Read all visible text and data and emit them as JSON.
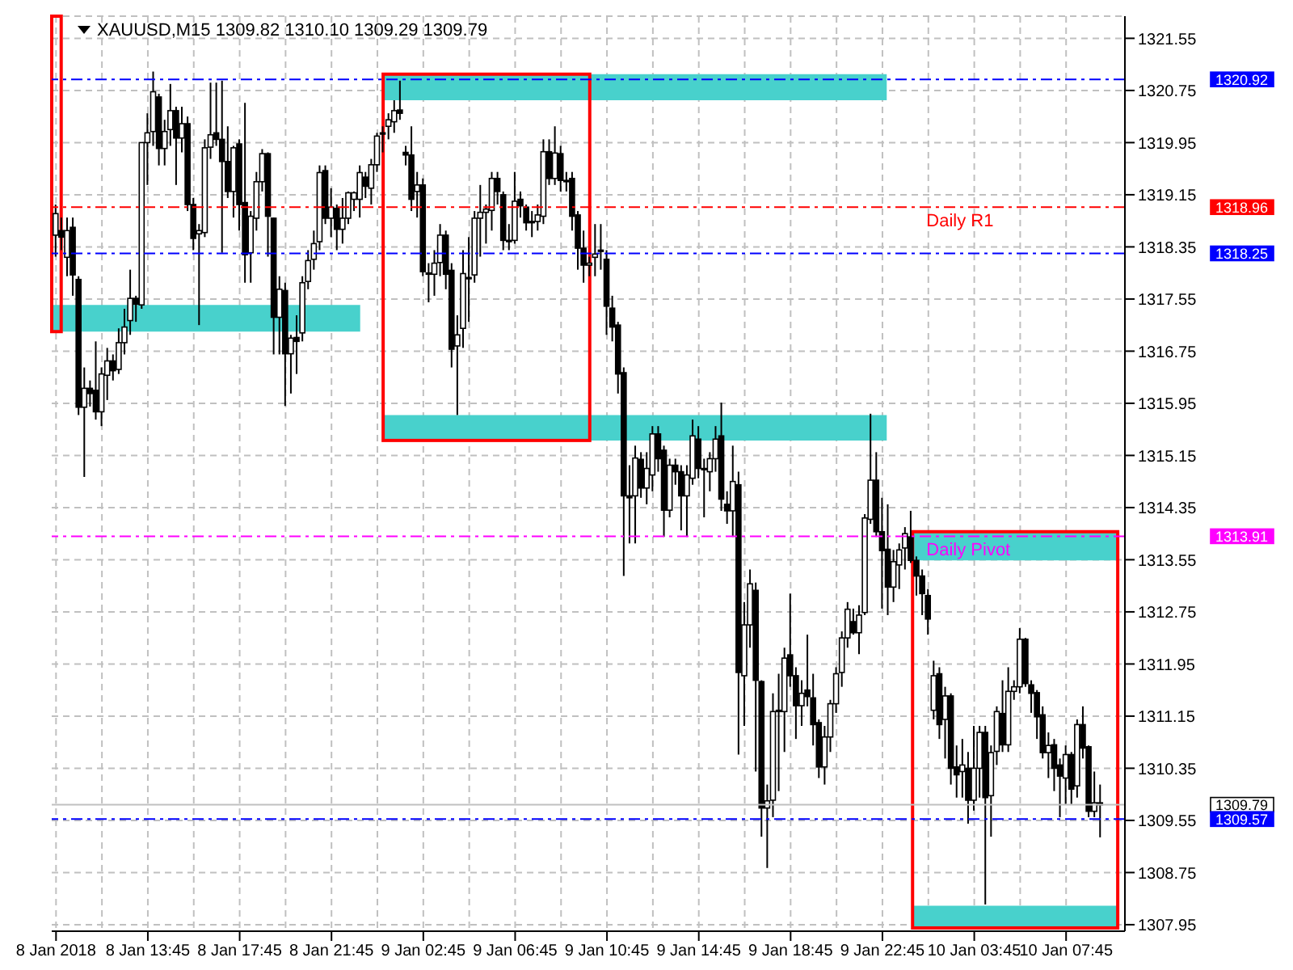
{
  "chart_data": {
    "type": "candlestick",
    "title": "XAUUSD,M15  1309.82 1310.10 1309.29 1309.79",
    "color": "#000000",
    "grid": true,
    "legend": false,
    "categories": [
      "8 Jan 2018",
      null,
      null,
      null,
      null,
      null,
      null,
      null,
      null,
      null,
      null,
      null,
      null,
      null,
      null,
      null,
      "8 Jan 13:45",
      null,
      null,
      null,
      null,
      null,
      null,
      null,
      null,
      null,
      null,
      null,
      null,
      null,
      null,
      null,
      "8 Jan 17:45",
      null,
      null,
      null,
      null,
      null,
      null,
      null,
      null,
      null,
      null,
      null,
      null,
      null,
      null,
      null,
      "8 Jan 21:45",
      null,
      null,
      null,
      null,
      null,
      null,
      null,
      null,
      null,
      null,
      null,
      null,
      null,
      null,
      null,
      "9 Jan 02:45",
      null,
      null,
      null,
      null,
      null,
      null,
      null,
      null,
      null,
      null,
      null,
      null,
      null,
      null,
      null,
      "9 Jan 06:45",
      null,
      null,
      null,
      null,
      null,
      null,
      null,
      null,
      null,
      null,
      null,
      null,
      null,
      null,
      null,
      "9 Jan 10:45",
      null,
      null,
      null,
      null,
      null,
      null,
      null,
      null,
      null,
      null,
      null,
      null,
      null,
      null,
      null,
      "9 Jan 14:45",
      null,
      null,
      null,
      null,
      null,
      null,
      null,
      null,
      null,
      null,
      null,
      null,
      null,
      null,
      null,
      "9 Jan 18:45",
      null,
      null,
      null,
      null,
      null,
      null,
      null,
      null,
      null,
      null,
      null,
      null,
      null,
      null,
      null,
      "9 Jan 22:45",
      null,
      null,
      null,
      null,
      null,
      null,
      null,
      null,
      null,
      null,
      null,
      null,
      null,
      null,
      null,
      "10 Jan 03:45",
      null,
      null,
      null,
      null,
      null,
      null,
      null,
      null,
      null,
      null,
      null,
      null,
      null,
      null,
      null,
      "10 Jan 07:45",
      null,
      null,
      null,
      null,
      null,
      null
    ],
    "ohlc": [
      [
        1318.53,
        1319.0,
        1318.2,
        1318.86
      ],
      [
        1318.6,
        1318.8,
        1318.3,
        1318.5
      ],
      [
        1318.19,
        1318.8,
        1317.9,
        1318.6
      ],
      [
        1318.65,
        1318.8,
        1317.6,
        1317.92
      ],
      [
        1317.85,
        1317.9,
        1315.77,
        1315.89
      ],
      [
        1315.89,
        1316.5,
        1314.82,
        1316.18
      ],
      [
        1316.18,
        1316.3,
        1315.9,
        1316.1
      ],
      [
        1316.15,
        1316.9,
        1315.7,
        1315.82
      ],
      [
        1315.82,
        1316.5,
        1315.6,
        1316.4
      ],
      [
        1316.38,
        1316.8,
        1316.0,
        1316.6
      ],
      [
        1316.6,
        1316.7,
        1316.3,
        1316.45
      ],
      [
        1316.47,
        1317.1,
        1316.4,
        1316.88
      ],
      [
        1316.88,
        1317.4,
        1316.7,
        1317.12
      ],
      [
        1317.22,
        1318.0,
        1317.0,
        1317.56
      ],
      [
        1317.56,
        1317.6,
        1317.2,
        1317.47
      ],
      [
        1317.46,
        1319.95,
        1317.4,
        1319.95
      ],
      [
        1319.95,
        1320.4,
        1319.3,
        1320.1
      ],
      [
        1320.12,
        1321.04,
        1319.9,
        1320.73
      ],
      [
        1320.65,
        1320.7,
        1319.6,
        1319.86
      ],
      [
        1319.86,
        1320.3,
        1319.6,
        1320.12
      ],
      [
        1320.15,
        1320.85,
        1319.9,
        1320.44
      ],
      [
        1320.44,
        1320.5,
        1319.3,
        1320.02
      ],
      [
        1320.02,
        1320.5,
        1319.8,
        1320.24
      ],
      [
        1320.24,
        1320.35,
        1318.9,
        1319.0
      ],
      [
        1319.0,
        1319.1,
        1318.3,
        1318.48
      ],
      [
        1318.55,
        1318.7,
        1317.15,
        1318.6
      ],
      [
        1318.57,
        1320.0,
        1318.5,
        1319.87
      ],
      [
        1319.88,
        1320.87,
        1319.7,
        1320.07
      ],
      [
        1320.1,
        1320.87,
        1319.9,
        1320.0
      ],
      [
        1320.0,
        1320.9,
        1318.26,
        1319.66
      ],
      [
        1319.66,
        1320.2,
        1319.1,
        1319.2
      ],
      [
        1319.2,
        1319.9,
        1318.8,
        1319.87
      ],
      [
        1319.93,
        1320.0,
        1318.6,
        1319.0
      ],
      [
        1319.03,
        1320.56,
        1317.8,
        1318.23
      ],
      [
        1318.26,
        1318.9,
        1317.8,
        1318.82
      ],
      [
        1318.79,
        1319.5,
        1318.6,
        1319.35
      ],
      [
        1319.35,
        1319.85,
        1319.2,
        1319.78
      ],
      [
        1319.78,
        1319.8,
        1318.2,
        1318.82
      ],
      [
        1318.79,
        1318.8,
        1316.7,
        1317.27
      ],
      [
        1317.27,
        1317.9,
        1316.7,
        1317.7
      ],
      [
        1317.68,
        1317.8,
        1315.91,
        1316.71
      ],
      [
        1316.71,
        1317.0,
        1316.1,
        1316.95
      ],
      [
        1316.96,
        1317.3,
        1316.4,
        1316.9
      ],
      [
        1317.03,
        1317.9,
        1316.9,
        1317.8
      ],
      [
        1317.82,
        1318.3,
        1317.7,
        1318.14
      ],
      [
        1318.16,
        1318.6,
        1318.0,
        1318.4
      ],
      [
        1318.43,
        1319.6,
        1318.3,
        1319.49
      ],
      [
        1319.52,
        1319.6,
        1318.7,
        1318.79
      ],
      [
        1318.79,
        1319.25,
        1318.5,
        1318.96
      ],
      [
        1318.94,
        1319.0,
        1318.3,
        1318.62
      ],
      [
        1318.62,
        1319.1,
        1318.4,
        1318.79
      ],
      [
        1318.79,
        1319.2,
        1318.7,
        1319.18
      ],
      [
        1319.08,
        1319.2,
        1318.9,
        1319.18
      ],
      [
        1319.08,
        1319.6,
        1318.8,
        1319.49
      ],
      [
        1319.42,
        1319.5,
        1319.1,
        1319.28
      ],
      [
        1319.25,
        1319.7,
        1319.0,
        1319.61
      ],
      [
        1319.61,
        1320.1,
        1319.5,
        1320.05
      ],
      [
        1320.1,
        1320.2,
        1319.8,
        1320.1
      ],
      [
        1320.2,
        1320.4,
        1320.0,
        1320.3
      ],
      [
        1320.27,
        1320.6,
        1320.1,
        1320.44
      ],
      [
        1320.45,
        1320.9,
        1320.3,
        1320.4
      ],
      [
        1319.8,
        1319.9,
        1319.6,
        1319.76
      ],
      [
        1319.76,
        1320.2,
        1318.9,
        1319.08
      ],
      [
        1319.2,
        1319.5,
        1318.8,
        1319.3
      ],
      [
        1319.3,
        1319.4,
        1317.9,
        1317.97
      ],
      [
        1317.95,
        1318.1,
        1317.5,
        1317.95
      ],
      [
        1317.93,
        1318.3,
        1317.6,
        1318.1
      ],
      [
        1318.11,
        1318.7,
        1317.9,
        1318.53
      ],
      [
        1318.53,
        1318.6,
        1317.7,
        1317.93
      ],
      [
        1317.99,
        1318.1,
        1316.5,
        1316.78
      ],
      [
        1316.83,
        1317.3,
        1315.77,
        1317.0
      ],
      [
        1317.1,
        1318.3,
        1316.8,
        1317.94
      ],
      [
        1317.88,
        1318.5,
        1317.2,
        1317.88
      ],
      [
        1317.92,
        1318.9,
        1317.8,
        1318.79
      ],
      [
        1318.79,
        1319.3,
        1318.2,
        1318.88
      ],
      [
        1318.88,
        1319.0,
        1318.4,
        1318.93
      ],
      [
        1318.91,
        1319.5,
        1318.6,
        1319.4
      ],
      [
        1319.4,
        1319.5,
        1319.0,
        1319.2
      ],
      [
        1319.15,
        1319.2,
        1318.3,
        1318.45
      ],
      [
        1318.45,
        1318.7,
        1318.3,
        1318.43
      ],
      [
        1318.45,
        1319.5,
        1318.4,
        1319.05
      ],
      [
        1319.08,
        1319.2,
        1318.8,
        1318.98
      ],
      [
        1318.96,
        1319.0,
        1318.6,
        1318.72
      ],
      [
        1318.74,
        1318.9,
        1318.5,
        1318.74
      ],
      [
        1318.74,
        1319.0,
        1318.6,
        1318.84
      ],
      [
        1318.82,
        1320.0,
        1318.7,
        1319.81
      ],
      [
        1319.81,
        1320.0,
        1319.3,
        1319.4
      ],
      [
        1319.4,
        1320.2,
        1319.3,
        1319.79
      ],
      [
        1319.78,
        1319.9,
        1319.2,
        1319.37
      ],
      [
        1319.37,
        1319.5,
        1319.2,
        1319.37
      ],
      [
        1319.4,
        1319.5,
        1318.6,
        1318.82
      ],
      [
        1318.84,
        1318.9,
        1318.0,
        1318.33
      ],
      [
        1318.33,
        1318.6,
        1317.8,
        1318.07
      ],
      [
        1318.07,
        1318.2,
        1317.9,
        1318.1
      ],
      [
        1318.19,
        1318.7,
        1317.9,
        1318.24
      ],
      [
        1318.3,
        1318.7,
        1318.0,
        1318.3
      ],
      [
        1318.16,
        1318.3,
        1317.0,
        1317.44
      ],
      [
        1317.41,
        1317.6,
        1316.9,
        1317.12
      ],
      [
        1317.15,
        1317.2,
        1316.1,
        1316.4
      ],
      [
        1316.42,
        1316.5,
        1313.3,
        1314.53
      ],
      [
        1314.53,
        1315.0,
        1313.8,
        1314.5
      ],
      [
        1314.53,
        1315.3,
        1313.8,
        1315.11
      ],
      [
        1315.09,
        1315.2,
        1314.5,
        1314.65
      ],
      [
        1314.65,
        1315.2,
        1314.4,
        1314.95
      ],
      [
        1314.85,
        1315.6,
        1314.6,
        1315.48
      ],
      [
        1315.48,
        1315.6,
        1314.9,
        1315.1
      ],
      [
        1315.23,
        1315.3,
        1313.9,
        1314.31
      ],
      [
        1314.31,
        1315.1,
        1314.2,
        1315.0
      ],
      [
        1315.0,
        1315.1,
        1314.7,
        1314.9
      ],
      [
        1314.9,
        1315.0,
        1314.0,
        1314.53
      ],
      [
        1314.53,
        1315.0,
        1313.9,
        1314.85
      ],
      [
        1314.8,
        1315.7,
        1314.7,
        1315.45
      ],
      [
        1315.4,
        1315.6,
        1314.8,
        1314.95
      ],
      [
        1314.95,
        1315.1,
        1314.2,
        1314.95
      ],
      [
        1314.9,
        1315.2,
        1314.6,
        1315.1
      ],
      [
        1315.1,
        1315.6,
        1314.9,
        1315.4
      ],
      [
        1315.45,
        1315.96,
        1314.3,
        1314.48
      ],
      [
        1314.4,
        1314.6,
        1314.1,
        1314.3
      ],
      [
        1314.3,
        1315.3,
        1313.9,
        1314.75
      ],
      [
        1314.7,
        1314.9,
        1310.56,
        1311.82
      ],
      [
        1311.77,
        1312.9,
        1311.0,
        1312.55
      ],
      [
        1312.55,
        1313.4,
        1312.2,
        1313.18
      ],
      [
        1313.08,
        1313.2,
        1310.3,
        1311.7
      ],
      [
        1311.68,
        1311.7,
        1309.3,
        1309.74
      ],
      [
        1309.74,
        1310.1,
        1308.82,
        1309.85
      ],
      [
        1309.86,
        1311.5,
        1309.6,
        1311.22
      ],
      [
        1311.22,
        1311.8,
        1310.0,
        1311.24
      ],
      [
        1311.22,
        1312.2,
        1310.6,
        1312.04
      ],
      [
        1312.09,
        1313.03,
        1311.6,
        1311.77
      ],
      [
        1311.77,
        1311.9,
        1310.8,
        1311.31
      ],
      [
        1311.31,
        1311.7,
        1311.0,
        1311.5
      ],
      [
        1311.55,
        1312.4,
        1311.3,
        1311.45
      ],
      [
        1311.43,
        1311.8,
        1310.7,
        1311.02
      ],
      [
        1311.05,
        1311.1,
        1310.2,
        1310.37
      ],
      [
        1310.37,
        1311.0,
        1310.1,
        1310.83
      ],
      [
        1310.83,
        1311.4,
        1310.6,
        1311.34
      ],
      [
        1311.34,
        1311.9,
        1311.2,
        1311.8
      ],
      [
        1311.82,
        1312.45,
        1311.6,
        1312.35
      ],
      [
        1312.35,
        1312.9,
        1312.2,
        1312.79
      ],
      [
        1312.6,
        1312.8,
        1312.4,
        1312.43
      ],
      [
        1312.43,
        1312.85,
        1312.1,
        1312.7
      ],
      [
        1312.74,
        1314.25,
        1312.7,
        1314.19
      ],
      [
        1314.17,
        1315.79,
        1314.1,
        1314.77
      ],
      [
        1314.77,
        1315.2,
        1313.9,
        1313.98
      ],
      [
        1313.98,
        1314.5,
        1312.8,
        1313.69
      ],
      [
        1313.71,
        1314.4,
        1312.7,
        1313.13
      ],
      [
        1313.13,
        1313.7,
        1312.9,
        1313.52
      ],
      [
        1313.47,
        1313.8,
        1313.1,
        1313.7
      ],
      [
        1313.73,
        1314.05,
        1313.4,
        1313.95
      ],
      [
        1313.9,
        1314.3,
        1313.5,
        1313.54
      ],
      [
        1313.54,
        1313.6,
        1313.0,
        1313.3
      ],
      [
        1313.3,
        1313.4,
        1312.7,
        1313.03
      ],
      [
        1313.0,
        1313.1,
        1312.4,
        1312.64
      ],
      [
        1311.24,
        1312.0,
        1311.1,
        1311.77
      ],
      [
        1311.8,
        1311.9,
        1310.8,
        1311.02
      ],
      [
        1311.1,
        1311.6,
        1310.5,
        1311.46
      ],
      [
        1311.46,
        1311.5,
        1310.1,
        1310.35
      ],
      [
        1310.37,
        1310.7,
        1309.9,
        1310.25
      ],
      [
        1310.3,
        1310.8,
        1309.9,
        1310.4
      ],
      [
        1310.35,
        1310.6,
        1309.5,
        1309.86
      ],
      [
        1309.86,
        1311.0,
        1309.7,
        1310.35
      ],
      [
        1310.35,
        1311.0,
        1309.9,
        1310.9
      ],
      [
        1310.9,
        1311.0,
        1308.26,
        1309.9
      ],
      [
        1309.93,
        1310.7,
        1309.3,
        1310.59
      ],
      [
        1310.61,
        1311.3,
        1310.4,
        1311.22
      ],
      [
        1311.19,
        1311.7,
        1310.6,
        1310.71
      ],
      [
        1310.71,
        1311.9,
        1310.6,
        1311.53
      ],
      [
        1311.53,
        1311.7,
        1311.4,
        1311.6
      ],
      [
        1311.6,
        1312.5,
        1311.5,
        1312.33
      ],
      [
        1312.33,
        1312.35,
        1311.6,
        1311.65
      ],
      [
        1311.63,
        1311.7,
        1311.2,
        1311.5
      ],
      [
        1311.51,
        1311.55,
        1310.8,
        1311.14
      ],
      [
        1311.17,
        1311.3,
        1310.5,
        1310.59
      ],
      [
        1310.59,
        1310.9,
        1310.2,
        1310.7
      ],
      [
        1310.71,
        1310.8,
        1310.0,
        1310.35
      ],
      [
        1310.4,
        1310.5,
        1309.6,
        1310.23
      ],
      [
        1310.2,
        1310.7,
        1309.8,
        1310.56
      ],
      [
        1310.56,
        1310.6,
        1309.8,
        1310.03
      ],
      [
        1310.08,
        1311.1,
        1309.9,
        1311.02
      ],
      [
        1311.02,
        1311.3,
        1310.5,
        1310.66
      ],
      [
        1310.68,
        1310.7,
        1309.6,
        1309.69
      ],
      [
        1309.69,
        1310.3,
        1309.6,
        1309.82
      ],
      [
        1309.82,
        1310.1,
        1309.29,
        1309.79
      ]
    ],
    "ylim": [
      1307.85,
      1321.89
    ],
    "yticks": [
      1307.95,
      1308.75,
      1309.55,
      1310.35,
      1311.15,
      1311.95,
      1312.75,
      1313.55,
      1314.35,
      1315.15,
      1315.95,
      1316.75,
      1317.55,
      1318.35,
      1319.15,
      1319.95,
      1320.75,
      1321.55
    ],
    "ref_lines": [
      {
        "axis": "y",
        "value": 1320.92,
        "label": null,
        "color": "#0000ff",
        "line_style": "dashed"
      },
      {
        "axis": "y",
        "value": 1318.96,
        "label": "Daily R1",
        "color": "#ff0000",
        "line_style": "dashed"
      },
      {
        "axis": "y",
        "value": 1318.25,
        "label": null,
        "color": "#0000ff",
        "line_style": "dashed"
      },
      {
        "axis": "y",
        "value": 1313.91,
        "label": "Daily Pivot",
        "color": "#ff00ff",
        "line_style": "dashed"
      },
      {
        "axis": "y",
        "value": 1309.79,
        "label": null,
        "color": "#c0c0c0",
        "line_style": "solid"
      },
      {
        "axis": "y",
        "value": 1309.57,
        "label": null,
        "color": "#0000ff",
        "line_style": "dashed"
      }
    ],
    "annotations": [
      "1320.92",
      "1318.96",
      "1318.25",
      "1313.91",
      "1309.79",
      "1309.57"
    ],
    "bands": [
      {
        "axis": "y",
        "from": 1317.05,
        "to": 1317.46,
        "label": null,
        "color": "#48d1cc"
      },
      {
        "axis": "y",
        "from": 1320.6,
        "to": 1321.0,
        "label": null,
        "color": "#48d1cc"
      },
      {
        "axis": "y",
        "from": 1315.38,
        "to": 1315.77,
        "label": null,
        "color": "#48d1cc"
      },
      {
        "axis": "y",
        "from": 1313.54,
        "to": 1313.98,
        "label": null,
        "color": "#48d1cc"
      },
      {
        "axis": "y",
        "from": 1307.9,
        "to": 1308.24,
        "label": null,
        "color": "#48d1cc"
      }
    ]
  }
}
